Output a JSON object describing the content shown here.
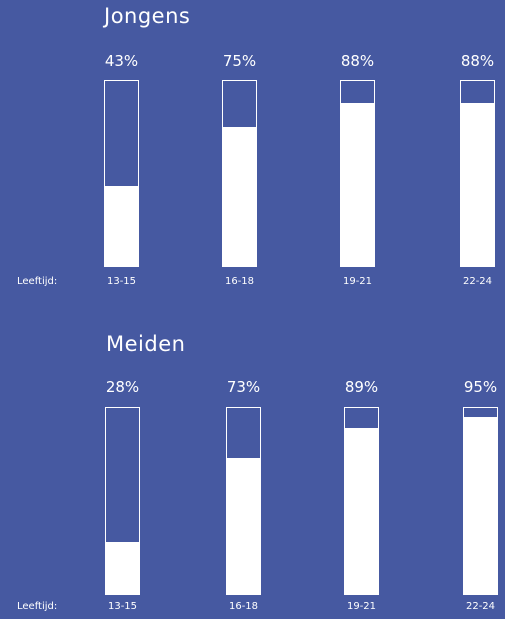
{
  "chart_data": [
    {
      "type": "bar",
      "title": "Jongens",
      "xlabel": "Leeftijd:",
      "categories": [
        "13-15",
        "16-18",
        "19-21",
        "22-24"
      ],
      "values": [
        43,
        75,
        88,
        88
      ],
      "value_labels": [
        "43%",
        "75%",
        "88%",
        "88%"
      ],
      "ylim": [
        0,
        100
      ]
    },
    {
      "type": "bar",
      "title": "Meiden",
      "xlabel": "Leeftijd:",
      "categories": [
        "13-15",
        "16-18",
        "19-21",
        "22-24"
      ],
      "values": [
        28,
        73,
        89,
        95
      ],
      "value_labels": [
        "28%",
        "73%",
        "89%",
        "95%"
      ],
      "ylim": [
        0,
        100
      ]
    }
  ],
  "colors": {
    "background": "#4659a1",
    "bar_fill": "#ffffff",
    "bar_outline": "#ffffff"
  }
}
